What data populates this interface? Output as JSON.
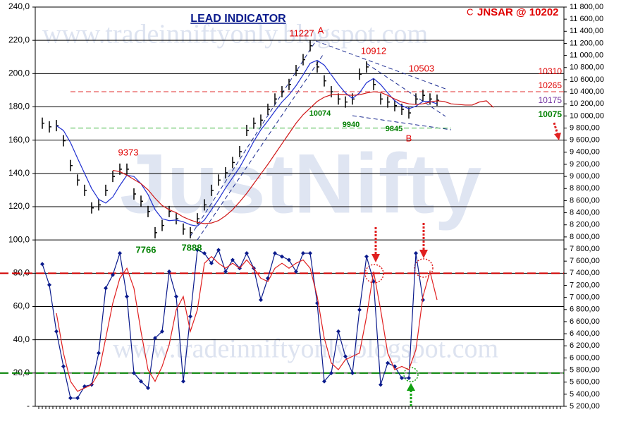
{
  "chart_data": {
    "type": "line",
    "title": "LEAD INDICATOR",
    "corner_mark": "C",
    "subtitle": "JNSAR @ 10202",
    "watermarks": [
      "www.tradeinniftyonly.blogspot.com",
      "JustNifty",
      "www.tradeinniftyonly.blogspot.com"
    ],
    "grid": true,
    "ylim": [
      0,
      240
    ],
    "yticks": [
      {
        "value": 0,
        "label": "-"
      },
      {
        "value": 20,
        "label": "20,0"
      },
      {
        "value": 40,
        "label": "40,0"
      },
      {
        "value": 60,
        "label": "60,0"
      },
      {
        "value": 80,
        "label": "80,0"
      },
      {
        "value": 100,
        "label": "100,0"
      },
      {
        "value": 120,
        "label": "120,0"
      },
      {
        "value": 140,
        "label": "140,0"
      },
      {
        "value": 160,
        "label": "160,0"
      },
      {
        "value": 180,
        "label": "180,0"
      },
      {
        "value": 200,
        "label": "200,0"
      },
      {
        "value": 220,
        "label": "220,0"
      },
      {
        "value": 240,
        "label": "240,0"
      }
    ],
    "y2lim": [
      5200,
      11800
    ],
    "y2ticks": [
      {
        "value": 5200,
        "label": "5 200,00"
      },
      {
        "value": 5400,
        "label": "5 400,00"
      },
      {
        "value": 5600,
        "label": "5 600,00"
      },
      {
        "value": 5800,
        "label": "5 800,00"
      },
      {
        "value": 6000,
        "label": "6 000,00"
      },
      {
        "value": 6200,
        "label": "6 200,00"
      },
      {
        "value": 6400,
        "label": "6 400,00"
      },
      {
        "value": 6600,
        "label": "6 600,00"
      },
      {
        "value": 6800,
        "label": "6 800,00"
      },
      {
        "value": 7000,
        "label": "7 000,00"
      },
      {
        "value": 7200,
        "label": "7 200,00"
      },
      {
        "value": 7400,
        "label": "7 400,00"
      },
      {
        "value": 7600,
        "label": "7 600,00"
      },
      {
        "value": 7800,
        "label": "7 800,00"
      },
      {
        "value": 8000,
        "label": "8 000,00"
      },
      {
        "value": 8200,
        "label": "8 200,00"
      },
      {
        "value": 8400,
        "label": "8 400,00"
      },
      {
        "value": 8600,
        "label": "8 600,00"
      },
      {
        "value": 8800,
        "label": "8 800,00"
      },
      {
        "value": 9000,
        "label": "9 000,00"
      },
      {
        "value": 9200,
        "label": "9 200,00"
      },
      {
        "value": 9400,
        "label": "9 400,00"
      },
      {
        "value": 9600,
        "label": "9 600,00"
      },
      {
        "value": 9800,
        "label": "9 800,00"
      },
      {
        "value": 10000,
        "label": "10 000,00"
      },
      {
        "value": 10200,
        "label": "10 200,00"
      },
      {
        "value": 10400,
        "label": "10 400,00"
      },
      {
        "value": 10600,
        "label": "10 600,00"
      },
      {
        "value": 10800,
        "label": "10 800,00"
      },
      {
        "value": 11000,
        "label": "11 000,00"
      },
      {
        "value": 11200,
        "label": "11 200,00"
      },
      {
        "value": 11400,
        "label": "11 400,00"
      },
      {
        "value": 11600,
        "label": "11 600,00"
      },
      {
        "value": 11800,
        "label": "11 800,00"
      }
    ],
    "series": [
      {
        "color": "#000000",
        "axis": "y2",
        "marker": "tick",
        "values": [
          9880,
          9820,
          9840,
          9590,
          9180,
          8940,
          8770,
          8480,
          8530,
          8770,
          9000,
          9120,
          9120,
          8710,
          8590,
          8420,
          8070,
          8190,
          8420,
          8300,
          8130,
          8070,
          8300,
          8530,
          8770,
          8940,
          9060,
          9230,
          9410,
          9760,
          9880,
          9930,
          10110,
          10280,
          10400,
          10520,
          10750,
          10930,
          11160,
          10810,
          10580,
          10400,
          10280,
          10230,
          10280,
          10690,
          10810,
          10520,
          10280,
          10230,
          10170,
          10110,
          10050,
          10280,
          10340,
          10280,
          10260,
          null,
          null,
          null,
          null,
          null,
          null,
          null,
          null
        ]
      },
      {
        "color": "#1f2fd0",
        "axis": "y2",
        "values": [
          null,
          null,
          9840,
          9760,
          9560,
          9300,
          9050,
          8800,
          8620,
          8560,
          8660,
          8850,
          9020,
          9000,
          8880,
          8700,
          8450,
          8300,
          8270,
          8280,
          8250,
          8200,
          8180,
          8280,
          8450,
          8620,
          8810,
          8980,
          9150,
          9360,
          9580,
          9770,
          9920,
          10080,
          10230,
          10350,
          10500,
          10680,
          10870,
          10920,
          10840,
          10680,
          10520,
          10380,
          10290,
          10380,
          10550,
          10620,
          10520,
          10380,
          10250,
          10170,
          10120,
          10160,
          10240,
          10240,
          10200,
          null,
          null,
          null,
          null,
          null,
          null,
          null,
          null
        ]
      },
      {
        "color": "#d01818",
        "axis": "y2",
        "values": [
          null,
          null,
          null,
          null,
          null,
          null,
          null,
          null,
          null,
          null,
          9100,
          9080,
          9020,
          8950,
          8880,
          8780,
          8640,
          8520,
          8450,
          8400,
          8330,
          8280,
          8240,
          8220,
          8230,
          8270,
          8350,
          8450,
          8580,
          8720,
          8880,
          9040,
          9200,
          9370,
          9540,
          9710,
          9880,
          10020,
          10130,
          10240,
          10310,
          10350,
          10360,
          10350,
          10340,
          10350,
          10380,
          10400,
          10390,
          10340,
          10280,
          10230,
          10200,
          10190,
          10200,
          10230,
          10250,
          10240,
          10200,
          10190,
          10180,
          10180,
          10230,
          10250,
          10140
        ]
      },
      {
        "color": "#0a1a8c",
        "axis": "y",
        "marker": "diamond",
        "values": [
          85.5,
          73,
          45,
          24,
          5,
          5,
          12,
          13,
          32,
          71,
          79,
          92,
          66,
          20,
          15,
          11,
          41,
          45,
          81,
          66,
          15,
          54,
          94,
          92,
          86,
          94,
          81,
          88,
          83,
          92,
          83,
          64,
          77,
          92,
          90,
          88,
          81,
          92,
          92,
          62,
          15,
          20,
          45,
          30,
          20,
          58,
          90,
          75,
          13,
          26,
          24,
          17,
          17,
          92,
          64,
          null,
          null,
          null,
          null,
          null,
          null,
          null,
          null,
          null,
          null
        ]
      },
      {
        "color": "#e02020",
        "axis": "y",
        "values": [
          null,
          null,
          56,
          32,
          15,
          9,
          11,
          13,
          20,
          41,
          62,
          77,
          83,
          71,
          45,
          22,
          15,
          24,
          37,
          58,
          66,
          45,
          58,
          86,
          90,
          86,
          83,
          86,
          83,
          88,
          83,
          77,
          75,
          83,
          86,
          83,
          86,
          88,
          83,
          66,
          41,
          26,
          22,
          28,
          30,
          32,
          54,
          81,
          58,
          32,
          22,
          24,
          22,
          34,
          66,
          81,
          64,
          null,
          null,
          null,
          null,
          null,
          null,
          null,
          null
        ]
      }
    ],
    "levels": [
      {
        "value": 10400,
        "axis": "y2",
        "color": "#e03030"
      },
      {
        "value": 9800,
        "axis": "y2",
        "color": "#30b030"
      },
      {
        "value": 80,
        "axis": "y",
        "color": "#d00000"
      },
      {
        "value": 20,
        "axis": "y",
        "color": "#008000"
      }
    ],
    "annotations": [
      {
        "text": "11227",
        "color": "#e00000"
      },
      {
        "text": "A",
        "color": "#e00000"
      },
      {
        "text": "10912",
        "color": "#e00000"
      },
      {
        "text": "10503",
        "color": "#e00000"
      },
      {
        "text": "10310",
        "color": "#e00000"
      },
      {
        "text": "10265",
        "color": "#e00000"
      },
      {
        "text": "10175",
        "color": "#7030a0"
      },
      {
        "text": "10075",
        "color": "#008000"
      },
      {
        "text": "10074",
        "color": "#008000"
      },
      {
        "text": "9940",
        "color": "#008000"
      },
      {
        "text": "9845",
        "color": "#008000"
      },
      {
        "text": "B",
        "color": "#e00000"
      },
      {
        "text": "9373",
        "color": "#e00000"
      },
      {
        "text": "7766",
        "color": "#008000"
      },
      {
        "text": "7888",
        "color": "#008000"
      }
    ]
  }
}
